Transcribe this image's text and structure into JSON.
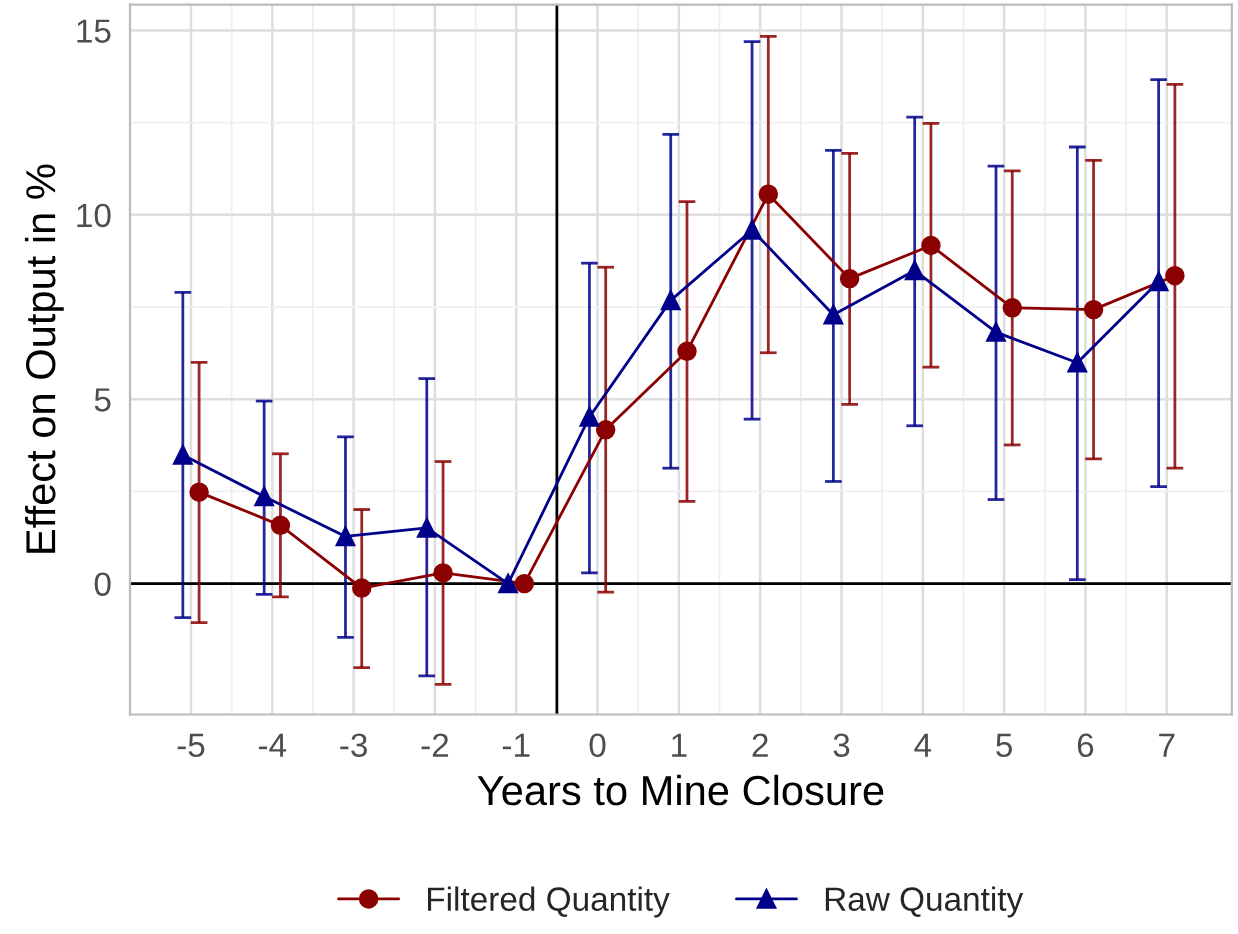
{
  "chart_data": {
    "type": "line",
    "xlabel": "Years to Mine Closure",
    "ylabel": "Effect on Output in %",
    "xlim": [
      -5.75,
      7.8
    ],
    "xticks": [
      -5,
      -4,
      -3,
      -2,
      -1,
      0,
      1,
      2,
      3,
      4,
      5,
      6,
      7
    ],
    "ylim": [
      -3.55,
      15.7
    ],
    "yticks": [
      0,
      5,
      10,
      15
    ],
    "grid": true,
    "legend": "bottom",
    "line_style": "solid",
    "ref_lines": [
      {
        "axis": "x",
        "value": -0.5,
        "color": "#000000"
      },
      {
        "axis": "y",
        "value": 0,
        "color": "#000000"
      }
    ],
    "series": [
      {
        "name": "Filtered Quantity",
        "color": "#8b0000",
        "marker": "circle",
        "x": [
          -4.9,
          -3.9,
          -2.9,
          -1.9,
          -0.9,
          0.1,
          1.1,
          2.1,
          3.1,
          4.1,
          5.1,
          6.1,
          7.1
        ],
        "values": [
          2.48,
          1.58,
          -0.12,
          0.29,
          0,
          4.17,
          6.3,
          10.56,
          8.27,
          9.17,
          7.48,
          7.43,
          8.35
        ],
        "errors": [
          [
            -1.06,
            6.0
          ],
          [
            -0.36,
            3.52
          ],
          [
            -2.28,
            2.01
          ],
          [
            -2.73,
            3.31
          ],
          null,
          [
            -0.23,
            8.58
          ],
          [
            2.23,
            10.36
          ],
          [
            6.26,
            14.84
          ],
          [
            4.86,
            11.67
          ],
          [
            5.87,
            12.48
          ],
          [
            3.76,
            11.19
          ],
          [
            3.38,
            11.48
          ],
          [
            3.13,
            13.54
          ]
        ]
      },
      {
        "name": "Raw Quantity",
        "color": "#00008b",
        "marker": "triangle",
        "x": [
          -5.1,
          -4.1,
          -3.1,
          -2.1,
          -1.1,
          -0.1,
          0.9,
          1.9,
          2.9,
          3.9,
          4.9,
          5.9,
          6.9
        ],
        "values": [
          3.49,
          2.36,
          1.28,
          1.51,
          0,
          4.52,
          7.68,
          9.59,
          7.29,
          8.49,
          6.82,
          5.99,
          8.19
        ],
        "errors": [
          [
            -0.92,
            7.9
          ],
          [
            -0.29,
            4.95
          ],
          [
            -1.46,
            3.98
          ],
          [
            -2.5,
            5.56
          ],
          null,
          [
            0.29,
            8.69
          ],
          [
            3.13,
            12.18
          ],
          [
            4.46,
            14.7
          ],
          [
            2.77,
            11.75
          ],
          [
            4.28,
            12.65
          ],
          [
            2.28,
            11.32
          ],
          [
            0.11,
            11.84
          ],
          [
            2.63,
            13.67
          ]
        ]
      }
    ]
  }
}
